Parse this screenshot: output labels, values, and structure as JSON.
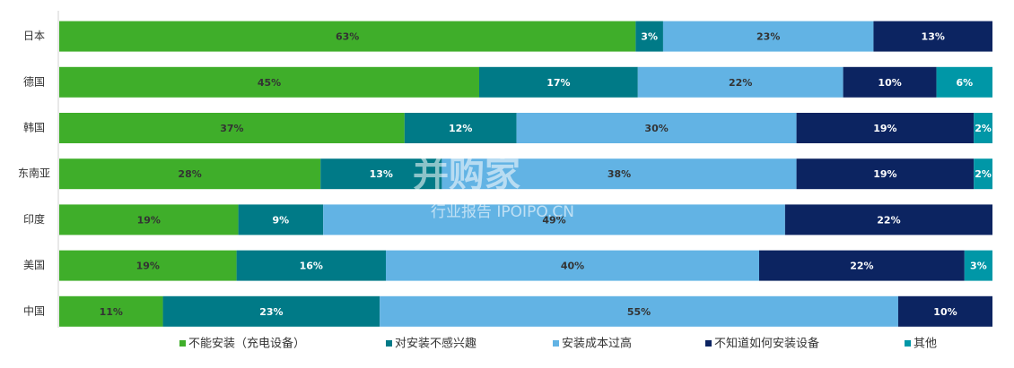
{
  "chart_data": {
    "type": "stacked-bar-100",
    "orientation": "horizontal",
    "categories": [
      "日本",
      "德国",
      "韩国",
      "东南亚",
      "印度",
      "美国",
      "中国"
    ],
    "series": [
      {
        "name": "不能安装（充电设备）",
        "color": "#3fae2a",
        "label_color": "#333333",
        "values": [
          63,
          45,
          37,
          28,
          19,
          19,
          11
        ],
        "value_labels": [
          "63%",
          "45%",
          "37%",
          "28%",
          "19%",
          "19%",
          "11%"
        ]
      },
      {
        "name": "对安装不感兴趣",
        "color": "#007a87",
        "label_color": "#ffffff",
        "values": [
          3,
          17,
          12,
          13,
          9,
          16,
          23
        ],
        "value_labels": [
          "3%",
          "17%",
          "12%",
          "13%",
          "9%",
          "16%",
          "23%"
        ]
      },
      {
        "name": "安装成本过高",
        "color": "#62b3e4",
        "label_color": "#333333",
        "values": [
          23,
          22,
          30,
          38,
          49,
          40,
          55
        ],
        "value_labels": [
          "23%",
          "22%",
          "30%",
          "38%",
          "49%",
          "40%",
          "55%"
        ]
      },
      {
        "name": "不知道如何安装设备",
        "color": "#0c2461",
        "label_color": "#ffffff",
        "values": [
          13,
          10,
          19,
          19,
          22,
          22,
          10
        ],
        "value_labels": [
          "13%",
          "10%",
          "19%",
          "19%",
          "22%",
          "22%",
          "10%"
        ]
      },
      {
        "name": "其他",
        "color": "#0097a7",
        "label_color": "#ffffff",
        "values": [
          null,
          6,
          2,
          2,
          null,
          3,
          null
        ],
        "value_labels": [
          null,
          "6%",
          "2%",
          "2%",
          null,
          "3%",
          null
        ]
      }
    ],
    "legend": "bottom",
    "watermark": [
      "并购家",
      "行业报告 IPOIPO.CN"
    ]
  }
}
